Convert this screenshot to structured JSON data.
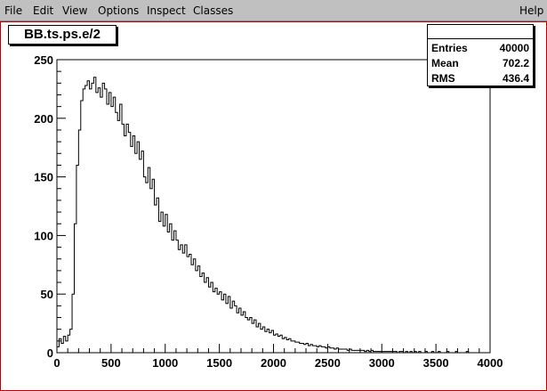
{
  "menu": {
    "items": [
      {
        "label": "File"
      },
      {
        "label": "Edit"
      },
      {
        "label": "View"
      },
      {
        "label": "Options"
      },
      {
        "label": "Inspect"
      },
      {
        "label": "Classes"
      }
    ],
    "help_label": "Help"
  },
  "histogram": {
    "title": "BB.ts.ps.e/2",
    "stats": {
      "entries_label": "Entries",
      "entries_value": "40000",
      "mean_label": "Mean",
      "mean_value": "702.2",
      "rms_label": "RMS",
      "rms_value": "436.4"
    }
  },
  "chart_data": {
    "type": "line",
    "title": "BB.ts.ps.e/2",
    "xlabel": "",
    "ylabel": "",
    "xlim": [
      0,
      4000
    ],
    "ylim": [
      0,
      250
    ],
    "x_ticks": [
      "0",
      "500",
      "1000",
      "1500",
      "2000",
      "2500",
      "3000",
      "3500",
      "4000"
    ],
    "y_ticks": [
      "0",
      "50",
      "100",
      "150",
      "200",
      "250"
    ],
    "grid": false,
    "bin_width": 20,
    "x": [
      0,
      20,
      40,
      60,
      80,
      100,
      120,
      140,
      160,
      180,
      200,
      220,
      240,
      260,
      280,
      300,
      320,
      340,
      360,
      380,
      400,
      420,
      440,
      460,
      480,
      500,
      520,
      540,
      560,
      580,
      600,
      620,
      640,
      660,
      680,
      700,
      720,
      740,
      760,
      780,
      800,
      820,
      840,
      860,
      880,
      900,
      920,
      940,
      960,
      980,
      1000,
      1020,
      1040,
      1060,
      1080,
      1100,
      1120,
      1140,
      1160,
      1180,
      1200,
      1220,
      1240,
      1260,
      1280,
      1300,
      1320,
      1340,
      1360,
      1380,
      1400,
      1420,
      1440,
      1460,
      1480,
      1500,
      1520,
      1540,
      1560,
      1580,
      1600,
      1620,
      1640,
      1660,
      1680,
      1700,
      1720,
      1740,
      1760,
      1780,
      1800,
      1820,
      1840,
      1860,
      1880,
      1900,
      1920,
      1940,
      1960,
      1980,
      2000,
      2020,
      2040,
      2060,
      2080,
      2100,
      2120,
      2140,
      2160,
      2180,
      2200,
      2220,
      2240,
      2260,
      2280,
      2300,
      2320,
      2340,
      2360,
      2380,
      2400,
      2420,
      2440,
      2460,
      2480,
      2500,
      2520,
      2540,
      2560,
      2580,
      2600,
      2620,
      2640,
      2660,
      2680,
      2700,
      2720,
      2740,
      2760,
      2780,
      2800,
      2820,
      2840,
      2860,
      2880,
      2900,
      2920,
      2940,
      2960,
      2980,
      3000,
      3020,
      3040,
      3060,
      3080,
      3100,
      3120,
      3140,
      3160,
      3180,
      3200,
      3220,
      3240,
      3260,
      3280,
      3300,
      3320,
      3340,
      3360,
      3380,
      3400,
      3420,
      3440,
      3460,
      3480,
      3500,
      3520,
      3540,
      3560,
      3580,
      3600,
      3620,
      3640,
      3660,
      3680,
      3700,
      3720,
      3740,
      3760,
      3780,
      3800,
      3820,
      3840,
      3860,
      3880,
      3900,
      3920,
      3940,
      3960,
      3980
    ],
    "series": [
      {
        "values": [
          5,
          12,
          8,
          14,
          10,
          15,
          20,
          50,
          110,
          160,
          190,
          215,
          225,
          228,
          232,
          225,
          230,
          235,
          222,
          226,
          218,
          230,
          225,
          212,
          222,
          210,
          218,
          205,
          198,
          212,
          195,
          185,
          195,
          188,
          176,
          185,
          170,
          180,
          165,
          172,
          150,
          145,
          158,
          140,
          148,
          126,
          132,
          112,
          120,
          108,
          118,
          103,
          110,
          96,
          104,
          96,
          88,
          92,
          85,
          92,
          82,
          84,
          75,
          80,
          70,
          74,
          65,
          68,
          60,
          64,
          56,
          60,
          52,
          55,
          50,
          52,
          45,
          50,
          42,
          48,
          38,
          44,
          40,
          34,
          38,
          32,
          35,
          30,
          28,
          30,
          25,
          28,
          22,
          25,
          20,
          22,
          18,
          20,
          17,
          19,
          15,
          16,
          14,
          15,
          12,
          13,
          11,
          12,
          10,
          10,
          9,
          9,
          8,
          8,
          7,
          8,
          6,
          7,
          6,
          6,
          5,
          6,
          5,
          5,
          4,
          5,
          4,
          4,
          3,
          4,
          3,
          3,
          3,
          3,
          2,
          3,
          2,
          2,
          2,
          2,
          2,
          2,
          1,
          2,
          1,
          2,
          1,
          1,
          1,
          1,
          1,
          1,
          1,
          1,
          1,
          1,
          1,
          0,
          1,
          1,
          0,
          1,
          0,
          1,
          0,
          1,
          0,
          1,
          0,
          0,
          1,
          0,
          0,
          1,
          0,
          0,
          1,
          0,
          0,
          0,
          1,
          0,
          0,
          0,
          1,
          0,
          0,
          0,
          0,
          1,
          0,
          0,
          0,
          0,
          0,
          0,
          0,
          0,
          0,
          0
        ]
      }
    ]
  }
}
